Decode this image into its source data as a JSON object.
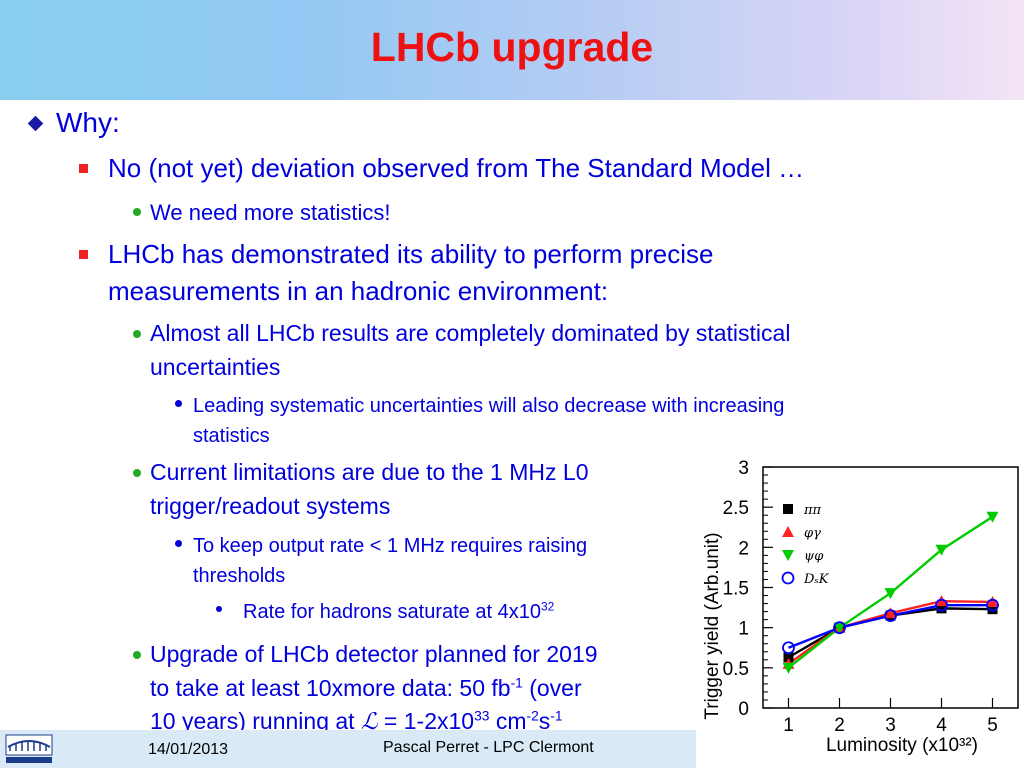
{
  "slide": {
    "title": "LHCb upgrade",
    "bullets": {
      "why": "Why:",
      "no_deviation": "No (not yet) deviation observed from The Standard Model …",
      "more_stats": "We need more statistics!",
      "demonstrated_1": "LHCb has demonstrated its ability to perform precise",
      "demonstrated_2": "measurements in an hadronic environment:",
      "dominated_1": "Almost all LHCb results are completely dominated by statistical",
      "dominated_2": "uncertainties",
      "systematic_1": "Leading systematic uncertainties will also decrease with increasing",
      "systematic_2": "statistics",
      "limitations_1": "Current limitations are due to the 1 MHz L0",
      "limitations_2": "trigger/readout systems",
      "output_rate_1": "To keep output rate < 1 MHz requires raising",
      "output_rate_2": "thresholds",
      "hadrons_rate": "Rate for hadrons saturate at 4x10",
      "hadrons_rate_exp": "32",
      "upgrade_1": "Upgrade of LHCb detector planned for 2019",
      "upgrade_2a": "to take at least 10xmore data: 50 fb",
      "upgrade_2_exp": "-1",
      "upgrade_2b": " (over",
      "upgrade_3a": "10 years) running at ",
      "upgrade_3_sym": "ℒ",
      "upgrade_3b": " = 1-2x10",
      "upgrade_3_exp1": "33",
      "upgrade_3c": " cm",
      "upgrade_3_exp2": "-2",
      "upgrade_3d": "s",
      "upgrade_3_exp3": "-1"
    }
  },
  "footer": {
    "date": "14/01/2013",
    "author": "Pascal Perret - LPC Clermont"
  },
  "colors": {
    "title": "#ee1111",
    "text": "#0000dd",
    "footer_bg": "#d9eaf6"
  },
  "chart_data": {
    "type": "line",
    "x": [
      1,
      2,
      3,
      4,
      5
    ],
    "xlabel": "Luminosity (x10³²)",
    "ylabel": "Trigger yield (Arb.unit)",
    "xlim": [
      0.5,
      5.5
    ],
    "ylim": [
      0,
      3
    ],
    "xticks": [
      "1",
      "2",
      "3",
      "4",
      "5"
    ],
    "yticks": [
      "0",
      "0.5",
      "1",
      "1.5",
      "2",
      "2.5",
      "3"
    ],
    "legend_position": "top-left",
    "series": [
      {
        "name": "ππ",
        "marker": "square",
        "color": "#000000",
        "values": [
          0.63,
          1.0,
          1.15,
          1.24,
          1.23
        ]
      },
      {
        "name": "φγ",
        "marker": "triangle-up",
        "color": "#ff2222",
        "values": [
          0.55,
          1.0,
          1.18,
          1.33,
          1.32
        ]
      },
      {
        "name": "ψφ",
        "marker": "triangle-down",
        "color": "#00cc00",
        "values": [
          0.5,
          1.0,
          1.43,
          1.97,
          2.38
        ]
      },
      {
        "name": "DₛK",
        "marker": "circle-open",
        "color": "#0000ff",
        "values": [
          0.75,
          1.0,
          1.15,
          1.28,
          1.28
        ]
      }
    ]
  }
}
